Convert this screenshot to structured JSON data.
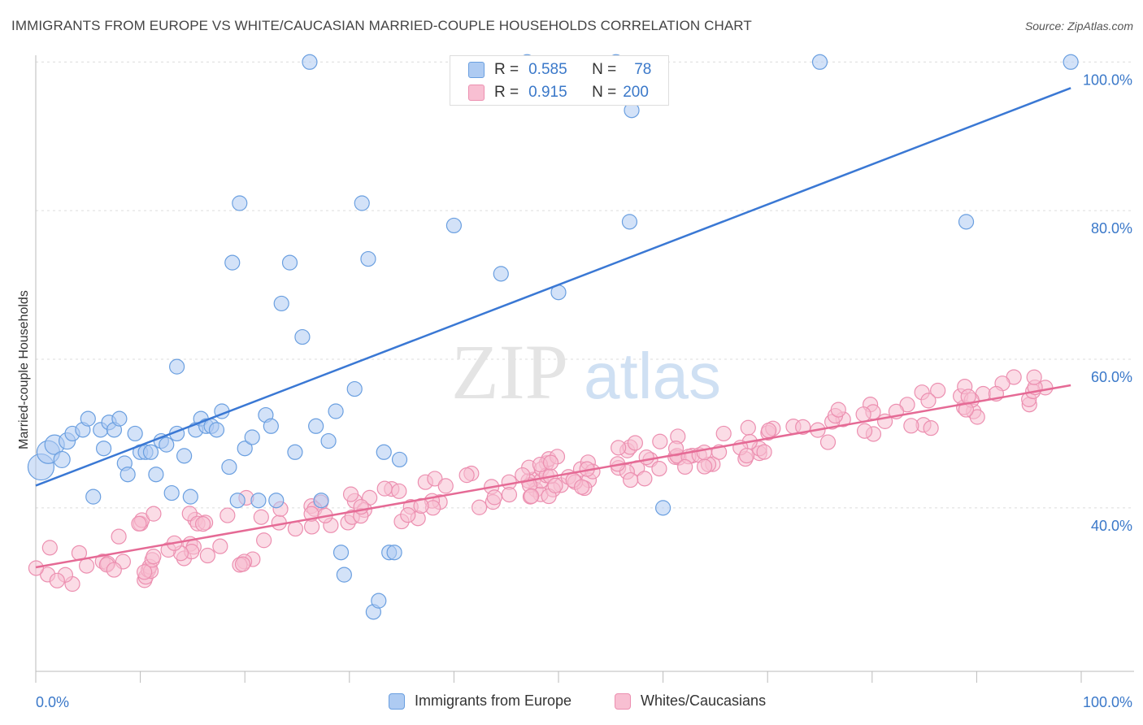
{
  "title": "IMMIGRANTS FROM EUROPE VS WHITE/CAUCASIAN MARRIED-COUPLE HOUSEHOLDS CORRELATION CHART",
  "source": "Source: ZipAtlas.com",
  "watermark": {
    "zip": "ZIP",
    "atlas": "atlas"
  },
  "colors": {
    "blue_fill": "#aecbf2",
    "blue_stroke": "#6a9fe0",
    "blue_line": "#3a78d4",
    "pink_fill": "#f8bfd2",
    "pink_stroke": "#ec8fb0",
    "pink_line": "#e56a95",
    "axis_label": "#3a78c9",
    "grid": "#dcdcdc"
  },
  "legend_top": {
    "rows": [
      {
        "r_label": "R =",
        "r_value": "0.585",
        "n_label": "N =",
        "n_value": "78"
      },
      {
        "r_label": "R =",
        "r_value": "0.915",
        "n_label": "N =",
        "n_value": "200"
      }
    ]
  },
  "chart_data": {
    "type": "scatter",
    "title": "IMMIGRANTS FROM EUROPE VS WHITE/CAUCASIAN MARRIED-COUPLE HOUSEHOLDS CORRELATION CHART",
    "xlabel": "",
    "ylabel": "Married-couple Households",
    "xlim": [
      0,
      100
    ],
    "ylim": [
      18,
      102
    ],
    "x_tick_labels": [
      "0.0%",
      "100.0%"
    ],
    "y_ticks": [
      40,
      60,
      80,
      100
    ],
    "y_tick_labels": [
      "40.0%",
      "60.0%",
      "80.0%",
      "100.0%"
    ],
    "grid": true,
    "legend_placement": "bottom",
    "series": [
      {
        "name": "Immigrants from Europe",
        "r": 0.585,
        "n": 78,
        "trend": {
          "x": [
            0,
            99
          ],
          "y": [
            43.0,
            96.5
          ]
        },
        "points": [
          [
            0.5,
            45.5,
            16
          ],
          [
            1.2,
            47.5,
            14
          ],
          [
            1.8,
            48.5,
            12
          ],
          [
            2.5,
            46.5,
            10
          ],
          [
            3.0,
            49.0,
            10
          ],
          [
            3.5,
            50.0,
            9
          ],
          [
            4.5,
            50.5,
            9
          ],
          [
            5.0,
            52.0,
            9
          ],
          [
            5.5,
            41.5,
            9
          ],
          [
            6.2,
            50.5,
            9
          ],
          [
            6.5,
            48.0,
            9
          ],
          [
            7.0,
            51.5,
            9
          ],
          [
            7.5,
            50.5,
            9
          ],
          [
            8.0,
            52.0,
            9
          ],
          [
            8.5,
            46.0,
            9
          ],
          [
            8.8,
            44.5,
            9
          ],
          [
            9.5,
            50.0,
            9
          ],
          [
            10.0,
            47.5,
            9
          ],
          [
            10.5,
            47.5,
            9
          ],
          [
            11.0,
            47.5,
            9
          ],
          [
            11.5,
            44.5,
            9
          ],
          [
            12.0,
            49.0,
            9
          ],
          [
            12.5,
            48.5,
            9
          ],
          [
            13.0,
            42.0,
            9
          ],
          [
            13.5,
            50.0,
            9
          ],
          [
            13.5,
            59.0,
            9
          ],
          [
            14.2,
            47.0,
            9
          ],
          [
            14.8,
            41.5,
            9
          ],
          [
            15.3,
            50.5,
            9
          ],
          [
            15.8,
            52.0,
            9
          ],
          [
            16.3,
            51.0,
            9
          ],
          [
            16.8,
            51.0,
            9
          ],
          [
            17.3,
            50.5,
            9
          ],
          [
            17.8,
            53.0,
            9
          ],
          [
            18.5,
            45.5,
            9
          ],
          [
            18.8,
            73.0,
            9
          ],
          [
            19.3,
            41.0,
            9
          ],
          [
            19.5,
            81.0,
            9
          ],
          [
            20.0,
            48.0,
            9
          ],
          [
            20.7,
            49.5,
            9
          ],
          [
            21.3,
            41.0,
            9
          ],
          [
            22.0,
            52.5,
            9
          ],
          [
            22.5,
            51.0,
            9
          ],
          [
            23.0,
            41.0,
            9
          ],
          [
            23.5,
            67.5,
            9
          ],
          [
            24.3,
            73.0,
            9
          ],
          [
            24.8,
            47.5,
            9
          ],
          [
            25.5,
            63.0,
            9
          ],
          [
            26.2,
            100.0,
            9
          ],
          [
            26.8,
            51.0,
            9
          ],
          [
            27.3,
            41.0,
            9
          ],
          [
            28.0,
            49.0,
            9
          ],
          [
            28.7,
            53.0,
            9
          ],
          [
            29.2,
            34.0,
            9
          ],
          [
            29.5,
            31.0,
            9
          ],
          [
            30.5,
            56.0,
            9
          ],
          [
            31.2,
            81.0,
            9
          ],
          [
            31.8,
            73.5,
            9
          ],
          [
            32.3,
            26.0,
            9
          ],
          [
            32.8,
            27.5,
            9
          ],
          [
            33.3,
            47.5,
            9
          ],
          [
            33.8,
            34.0,
            9
          ],
          [
            34.3,
            34.0,
            9
          ],
          [
            34.8,
            46.5,
            9
          ],
          [
            40.0,
            78.0,
            9
          ],
          [
            44.5,
            71.5,
            9
          ],
          [
            47.0,
            100.0,
            9
          ],
          [
            50.0,
            69.0,
            9
          ],
          [
            55.5,
            100.0,
            9
          ],
          [
            57.0,
            93.5,
            9
          ],
          [
            56.8,
            78.5,
            9
          ],
          [
            60.0,
            40.0,
            9
          ],
          [
            75.0,
            100.0,
            9
          ],
          [
            89.0,
            78.5,
            9
          ],
          [
            99.0,
            100.0,
            9
          ]
        ]
      },
      {
        "name": "Whites/Caucasians",
        "r": 0.915,
        "n": 200,
        "trend": {
          "x": [
            0,
            99
          ],
          "y": [
            32.0,
            56.5
          ]
        },
        "points": []
      }
    ]
  }
}
